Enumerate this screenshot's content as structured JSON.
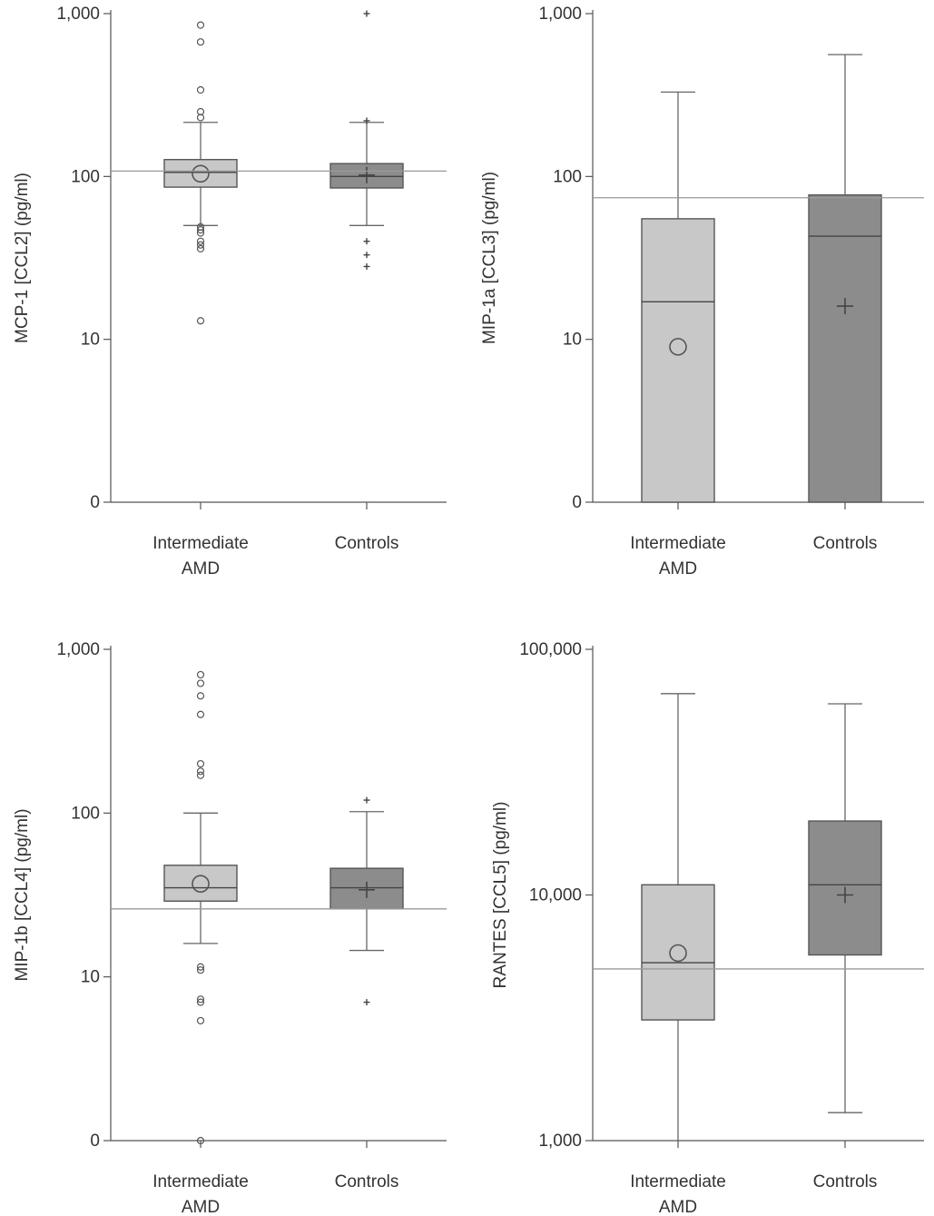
{
  "chart_data": [
    {
      "type": "boxplot",
      "panel": "top-left",
      "ylabel": "MCP-1 [CCL2] (pg/ml)",
      "yscale": "log",
      "ylim": [
        1,
        1000
      ],
      "yticks": [
        {
          "value": 1,
          "label": "0"
        },
        {
          "value": 10,
          "label": "10"
        },
        {
          "value": 100,
          "label": "100"
        },
        {
          "value": 1000,
          "label": "1,000"
        }
      ],
      "categories": [
        "Intermediate\nAMD",
        "Controls"
      ],
      "reference_line": 108,
      "series": [
        {
          "name": "Intermediate AMD",
          "color": "#c8c8c8",
          "marker": "circle",
          "whisker_low": 50,
          "q1": 86,
          "median": 106,
          "q3": 127,
          "whisker_high": 215,
          "mean": 104,
          "outliers": [
            850,
            670,
            340,
            250,
            230,
            49,
            47,
            45,
            40,
            38,
            36,
            13
          ]
        },
        {
          "name": "Controls",
          "color": "#8c8c8c",
          "marker": "plus",
          "whisker_low": 50,
          "q1": 85,
          "median": 100,
          "q3": 120,
          "whisker_high": 215,
          "mean": 102,
          "outliers": [
            1000,
            220,
            40,
            33,
            28
          ]
        }
      ]
    },
    {
      "type": "boxplot",
      "panel": "top-right",
      "ylabel": "MIP-1a [CCL3] (pg/ml)",
      "yscale": "log",
      "ylim": [
        1,
        1000
      ],
      "yticks": [
        {
          "value": 1,
          "label": "0"
        },
        {
          "value": 10,
          "label": "10"
        },
        {
          "value": 100,
          "label": "100"
        },
        {
          "value": 1000,
          "label": "1,000"
        }
      ],
      "categories": [
        "Intermediate\nAMD",
        "Controls"
      ],
      "reference_line": 74,
      "series": [
        {
          "name": "Intermediate AMD",
          "color": "#c8c8c8",
          "marker": "circle",
          "whisker_low": 1,
          "q1": 1,
          "median": 17,
          "q3": 55,
          "whisker_high": 330,
          "mean": 9,
          "outliers": []
        },
        {
          "name": "Controls",
          "color": "#8c8c8c",
          "marker": "plus",
          "whisker_low": 1,
          "q1": 1,
          "median": 43,
          "q3": 77,
          "whisker_high": 560,
          "mean": 16,
          "outliers": []
        }
      ]
    },
    {
      "type": "boxplot",
      "panel": "bottom-left",
      "ylabel": "MIP-1b [CCL4] (pg/ml)",
      "yscale": "log",
      "ylim": [
        1,
        1000
      ],
      "yticks": [
        {
          "value": 1,
          "label": "0"
        },
        {
          "value": 10,
          "label": "10"
        },
        {
          "value": 100,
          "label": "100"
        },
        {
          "value": 1000,
          "label": "1,000"
        }
      ],
      "categories": [
        "Intermediate\nAMD",
        "Controls"
      ],
      "reference_line": 26,
      "series": [
        {
          "name": "Intermediate AMD",
          "color": "#c8c8c8",
          "marker": "circle",
          "whisker_low": 16,
          "q1": 29,
          "median": 35,
          "q3": 48,
          "whisker_high": 100,
          "mean": 37,
          "outliers": [
            700,
            620,
            520,
            400,
            200,
            180,
            170,
            11.5,
            11,
            7.3,
            7,
            5.4,
            1
          ]
        },
        {
          "name": "Controls",
          "color": "#8c8c8c",
          "marker": "plus",
          "whisker_low": 14.5,
          "q1": 26,
          "median": 35,
          "q3": 46,
          "whisker_high": 102,
          "mean": 34,
          "outliers": [
            120,
            7
          ]
        }
      ]
    },
    {
      "type": "boxplot",
      "panel": "bottom-right",
      "ylabel": "RANTES [CCL5] (pg/ml)",
      "yscale": "log",
      "ylim": [
        1000,
        100000
      ],
      "yticks": [
        {
          "value": 1000,
          "label": "1,000"
        },
        {
          "value": 10000,
          "label": "10,000"
        },
        {
          "value": 100000,
          "label": "100,000"
        }
      ],
      "categories": [
        "Intermediate\nAMD",
        "Controls"
      ],
      "reference_line": 5000,
      "series": [
        {
          "name": "Intermediate AMD",
          "color": "#c8c8c8",
          "marker": "circle",
          "whisker_low": 1000,
          "q1": 3100,
          "median": 5300,
          "q3": 11000,
          "whisker_high": 66000,
          "mean": 5800,
          "outliers": []
        },
        {
          "name": "Controls",
          "color": "#8c8c8c",
          "marker": "plus",
          "whisker_low": 1300,
          "q1": 5700,
          "median": 11000,
          "q3": 20000,
          "whisker_high": 60000,
          "mean": 10000,
          "outliers": []
        }
      ]
    }
  ]
}
